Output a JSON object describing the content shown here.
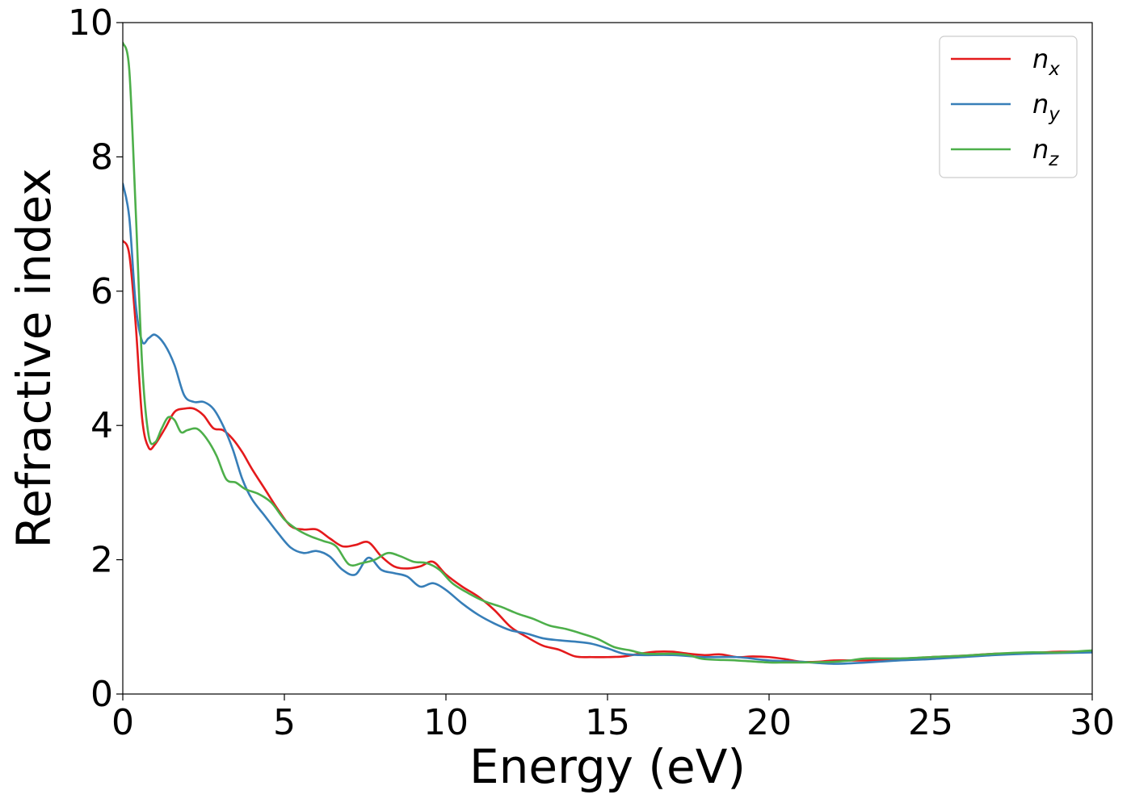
{
  "chart_data": {
    "type": "line",
    "title": "",
    "xlabel": "Energy (eV)",
    "ylabel": "Refractive index",
    "xlim": [
      0,
      30
    ],
    "ylim": [
      0,
      10
    ],
    "xticks": [
      "0",
      "5",
      "10",
      "15",
      "20",
      "25",
      "30"
    ],
    "yticks": [
      "0",
      "2",
      "4",
      "6",
      "8",
      "10"
    ],
    "grid": false,
    "legend_position": "top-right",
    "series": [
      {
        "name": "n",
        "subscript": "x",
        "color": "#e41a1c",
        "x": [
          0,
          0.2,
          0.4,
          0.6,
          0.8,
          1.0,
          1.3,
          1.6,
          1.9,
          2.2,
          2.5,
          2.8,
          3.1,
          3.4,
          3.7,
          4.0,
          4.4,
          4.8,
          5.2,
          5.6,
          6.0,
          6.4,
          6.8,
          7.2,
          7.6,
          8.0,
          8.4,
          8.8,
          9.2,
          9.6,
          10.0,
          10.5,
          11.0,
          11.5,
          12.0,
          12.5,
          13.0,
          13.5,
          14.0,
          14.5,
          15.0,
          15.5,
          16.0,
          16.5,
          17.0,
          17.5,
          18.0,
          18.5,
          19.0,
          19.5,
          20.0,
          20.5,
          21.0,
          21.5,
          22.0,
          22.5,
          23.0,
          24.0,
          25.0,
          26.0,
          27.0,
          28.0,
          29.0,
          30.0
        ],
        "values": [
          6.75,
          6.55,
          5.5,
          4.1,
          3.67,
          3.72,
          3.95,
          4.2,
          4.25,
          4.25,
          4.15,
          3.96,
          3.93,
          3.8,
          3.6,
          3.35,
          3.05,
          2.75,
          2.5,
          2.45,
          2.45,
          2.32,
          2.2,
          2.22,
          2.26,
          2.05,
          1.9,
          1.87,
          1.9,
          1.97,
          1.78,
          1.6,
          1.45,
          1.25,
          1.0,
          0.85,
          0.72,
          0.66,
          0.56,
          0.55,
          0.55,
          0.56,
          0.6,
          0.63,
          0.63,
          0.6,
          0.58,
          0.59,
          0.55,
          0.56,
          0.55,
          0.52,
          0.48,
          0.48,
          0.5,
          0.5,
          0.5,
          0.52,
          0.55,
          0.57,
          0.6,
          0.61,
          0.63,
          0.63
        ]
      },
      {
        "name": "n",
        "subscript": "y",
        "color": "#377eb8",
        "x": [
          0,
          0.2,
          0.4,
          0.6,
          0.8,
          1.0,
          1.3,
          1.6,
          1.9,
          2.2,
          2.5,
          2.8,
          3.1,
          3.4,
          3.7,
          4.0,
          4.4,
          4.8,
          5.2,
          5.6,
          6.0,
          6.4,
          6.8,
          7.2,
          7.6,
          8.0,
          8.4,
          8.8,
          9.2,
          9.6,
          10.0,
          10.5,
          11.0,
          11.5,
          12.0,
          12.5,
          13.0,
          13.5,
          14.0,
          14.5,
          15.0,
          15.5,
          16.0,
          17.0,
          18.0,
          19.0,
          20.0,
          21.0,
          22.0,
          23.0,
          24.0,
          25.0,
          26.0,
          27.0,
          28.0,
          29.0,
          30.0
        ],
        "values": [
          7.6,
          7.1,
          5.8,
          5.25,
          5.3,
          5.35,
          5.2,
          4.9,
          4.45,
          4.35,
          4.35,
          4.25,
          4.0,
          3.65,
          3.2,
          2.9,
          2.65,
          2.4,
          2.18,
          2.1,
          2.13,
          2.05,
          1.85,
          1.78,
          2.03,
          1.85,
          1.8,
          1.75,
          1.6,
          1.65,
          1.55,
          1.35,
          1.18,
          1.05,
          0.95,
          0.9,
          0.83,
          0.8,
          0.78,
          0.75,
          0.68,
          0.6,
          0.58,
          0.58,
          0.55,
          0.55,
          0.5,
          0.48,
          0.45,
          0.47,
          0.5,
          0.52,
          0.55,
          0.58,
          0.6,
          0.61,
          0.62
        ]
      },
      {
        "name": "n",
        "subscript": "z",
        "color": "#4daf4a",
        "x": [
          0,
          0.2,
          0.4,
          0.6,
          0.8,
          1.0,
          1.2,
          1.4,
          1.6,
          1.8,
          2.0,
          2.3,
          2.6,
          2.9,
          3.2,
          3.5,
          3.8,
          4.2,
          4.6,
          5.0,
          5.4,
          5.8,
          6.2,
          6.6,
          7.0,
          7.4,
          7.8,
          8.2,
          8.6,
          9.0,
          9.4,
          9.8,
          10.2,
          10.7,
          11.2,
          11.7,
          12.2,
          12.7,
          13.2,
          13.7,
          14.2,
          14.7,
          15.2,
          15.7,
          16.2,
          17.0,
          17.5,
          18.0,
          19.0,
          20.0,
          20.5,
          21.0,
          22.0,
          22.5,
          23.0,
          24.0,
          25.0,
          26.0,
          27.0,
          28.0,
          29.0,
          30.0
        ],
        "values": [
          9.7,
          9.3,
          7.2,
          4.9,
          3.85,
          3.75,
          3.95,
          4.12,
          4.08,
          3.9,
          3.93,
          3.95,
          3.8,
          3.55,
          3.2,
          3.15,
          3.05,
          2.98,
          2.85,
          2.6,
          2.45,
          2.35,
          2.28,
          2.2,
          1.93,
          1.95,
          2.0,
          2.1,
          2.05,
          1.97,
          1.95,
          1.85,
          1.65,
          1.5,
          1.38,
          1.3,
          1.2,
          1.12,
          1.02,
          0.97,
          0.9,
          0.82,
          0.7,
          0.65,
          0.6,
          0.6,
          0.58,
          0.52,
          0.5,
          0.47,
          0.47,
          0.47,
          0.48,
          0.5,
          0.53,
          0.53,
          0.55,
          0.57,
          0.6,
          0.62,
          0.62,
          0.65
        ]
      }
    ]
  }
}
